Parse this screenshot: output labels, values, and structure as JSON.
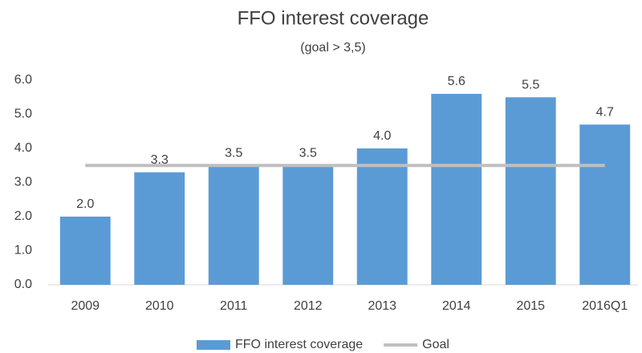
{
  "chart_data": {
    "type": "bar",
    "title": "FFO interest coverage",
    "subtitle": "(goal > 3,5)",
    "categories": [
      "2009",
      "2010",
      "2011",
      "2012",
      "2013",
      "2014",
      "2015",
      "2016Q1"
    ],
    "series": [
      {
        "name": "FFO interest coverage",
        "type": "bar",
        "color": "#5b9bd5",
        "values": [
          2.0,
          3.3,
          3.5,
          3.5,
          4.0,
          5.6,
          5.5,
          4.7
        ],
        "value_labels": [
          "2.0",
          "3.3",
          "3.5",
          "3.5",
          "4.0",
          "5.6",
          "5.5",
          "4.7"
        ]
      },
      {
        "name": "Goal",
        "type": "line",
        "color": "#bfbfbf",
        "values": [
          3.5,
          3.5,
          3.5,
          3.5,
          3.5,
          3.5,
          3.5,
          3.5
        ]
      }
    ],
    "ylim": [
      0,
      6
    ],
    "yticks": [
      {
        "value": 0,
        "label": "0.0"
      },
      {
        "value": 1,
        "label": "1.0"
      },
      {
        "value": 2,
        "label": "2.0"
      },
      {
        "value": 3,
        "label": "3.0"
      },
      {
        "value": 4,
        "label": "4.0"
      },
      {
        "value": 5,
        "label": "5.0"
      },
      {
        "value": 6,
        "label": "6.0"
      }
    ],
    "grid": false,
    "legend": "bottom"
  }
}
